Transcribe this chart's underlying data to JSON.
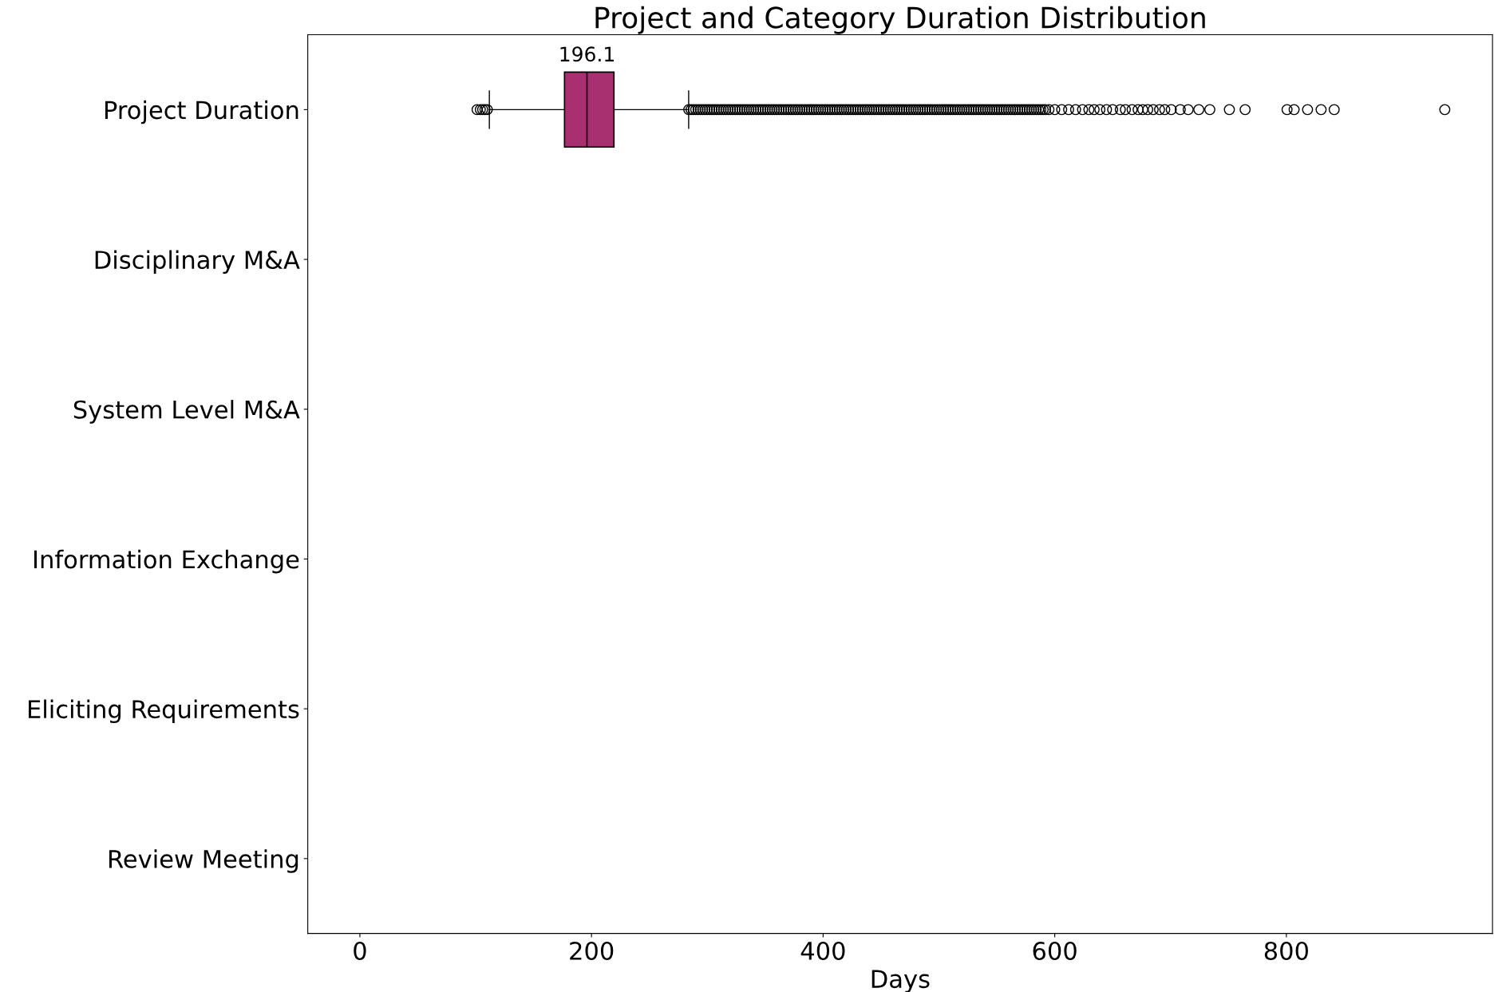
{
  "chart_data": {
    "type": "box",
    "orientation": "horizontal",
    "title": "Project and Category Duration Distribution",
    "xlabel": "Days",
    "categories": [
      "Project Duration",
      "Disciplinary M&A",
      "System Level M&A",
      "Information Exchange",
      "Eliciting Requirements",
      "Review Meeting"
    ],
    "color": "#a83070",
    "boxes": [
      {
        "low": 111.8,
        "q1": 176.7,
        "median": 196.1,
        "q3": 219.4,
        "high": 283.9,
        "outliers": [
          101.2,
          104,
          106,
          108,
          110,
          284,
          286,
          288,
          290,
          292,
          294,
          296,
          298,
          300,
          302,
          304,
          306,
          308,
          310,
          312,
          314,
          316,
          318,
          320,
          322,
          324,
          326,
          328,
          330,
          332,
          334,
          336,
          338,
          340,
          342,
          344,
          346,
          348,
          350,
          352,
          354,
          356,
          358,
          360,
          362,
          364,
          366,
          368,
          370,
          372,
          374,
          376,
          378,
          380,
          382,
          384,
          386,
          388,
          390,
          392,
          394,
          396,
          398,
          400,
          402,
          404,
          406,
          408,
          410,
          412,
          414,
          416,
          418,
          420,
          422,
          424,
          426,
          428,
          430,
          432,
          434,
          436,
          438,
          440,
          442,
          444,
          446,
          448,
          450,
          452,
          454,
          456,
          458,
          460,
          462,
          464,
          466,
          468,
          470,
          472,
          474,
          476,
          478,
          480,
          482,
          484,
          486,
          488,
          490,
          492,
          494,
          496,
          498,
          500,
          502,
          504,
          506,
          508,
          510,
          512,
          514,
          516,
          518,
          520,
          522,
          524,
          526,
          528,
          530,
          532,
          534,
          536,
          538,
          540,
          542,
          544,
          546,
          548,
          550,
          552,
          554,
          556,
          558,
          560,
          562,
          564,
          566,
          568,
          570,
          572,
          574,
          576,
          578,
          580,
          582,
          584,
          586,
          588,
          590,
          592,
          595,
          600,
          606,
          612,
          618,
          624,
          629.5,
          634,
          639,
          644.7,
          650,
          656.6,
          661,
          666.8,
          672,
          676,
          680.3,
          685,
          690.5,
          695,
          700.6,
          708.4,
          715.2,
          724.4,
          733.9,
          750.8,
          764.4,
          800.6,
          806.7,
          818.3,
          830,
          841.3,
          936.8
        ]
      },
      null,
      null,
      null,
      null,
      null
    ],
    "annotations": [
      {
        "text": "196.1",
        "x": 196.1,
        "y": "Project Duration"
      }
    ],
    "xlim": [
      -45,
      978
    ],
    "xticks": [
      0,
      200,
      400,
      600,
      800
    ],
    "grid": false
  }
}
